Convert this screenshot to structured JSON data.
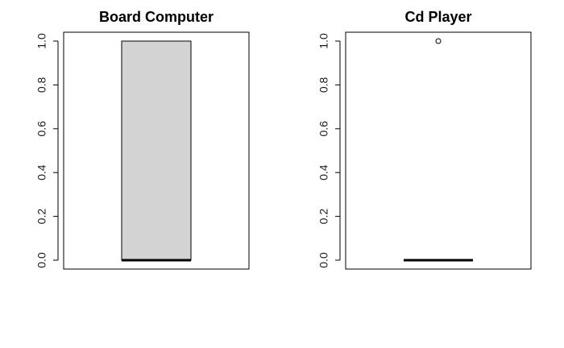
{
  "chart_data": [
    {
      "type": "box",
      "title": "Board Computer",
      "xlabel": "",
      "ylabel": "",
      "ylim": [
        0,
        1
      ],
      "yticks": [
        0.0,
        0.2,
        0.4,
        0.6,
        0.8,
        1.0
      ],
      "ytick_labels": [
        "0.0",
        "0.2",
        "0.4",
        "0.6",
        "0.8",
        "1.0"
      ],
      "box": {
        "min": 0,
        "q1": 0,
        "median": 0,
        "q3": 1,
        "max": 1,
        "outliers": []
      },
      "box_fill": "#d3d3d3"
    },
    {
      "type": "box",
      "title": "Cd Player",
      "xlabel": "",
      "ylabel": "",
      "ylim": [
        0,
        1
      ],
      "yticks": [
        0.0,
        0.2,
        0.4,
        0.6,
        0.8,
        1.0
      ],
      "ytick_labels": [
        "0.0",
        "0.2",
        "0.4",
        "0.6",
        "0.8",
        "1.0"
      ],
      "box": {
        "min": 0,
        "q1": 0,
        "median": 0,
        "q3": 0,
        "max": 0,
        "outliers": [
          1
        ]
      },
      "box_fill": "#d3d3d3"
    }
  ]
}
